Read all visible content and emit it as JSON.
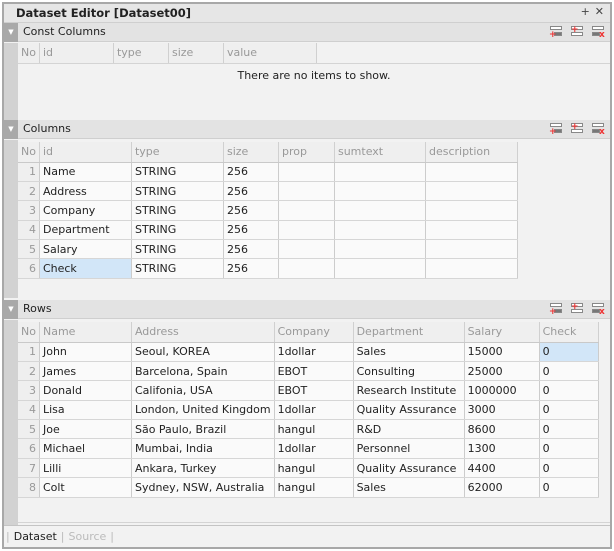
{
  "window": {
    "title": "Dataset Editor [Dataset00]",
    "pin": "+",
    "close": "✕"
  },
  "const_columns": {
    "title": "Const Columns",
    "headers": [
      "No",
      "id",
      "type",
      "size",
      "value"
    ],
    "empty_message": "There are no items to show."
  },
  "columns": {
    "title": "Columns",
    "headers": [
      "No",
      "id",
      "type",
      "size",
      "prop",
      "sumtext",
      "description"
    ],
    "rows": [
      [
        "1",
        "Name",
        "STRING",
        "256",
        "",
        "",
        ""
      ],
      [
        "2",
        "Address",
        "STRING",
        "256",
        "",
        "",
        ""
      ],
      [
        "3",
        "Company",
        "STRING",
        "256",
        "",
        "",
        ""
      ],
      [
        "4",
        "Department",
        "STRING",
        "256",
        "",
        "",
        ""
      ],
      [
        "5",
        "Salary",
        "STRING",
        "256",
        "",
        "",
        ""
      ],
      [
        "6",
        "Check",
        "STRING",
        "256",
        "",
        "",
        ""
      ]
    ]
  },
  "rows": {
    "title": "Rows",
    "headers": [
      "No",
      "Name",
      "Address",
      "Company",
      "Department",
      "Salary",
      "Check"
    ],
    "rows": [
      [
        "1",
        "John",
        "Seoul, KOREA",
        "1dollar",
        "Sales",
        "15000",
        "0"
      ],
      [
        "2",
        "James",
        "Barcelona, Spain",
        "EBOT",
        "Consulting",
        "25000",
        "0"
      ],
      [
        "3",
        "Donald",
        "Califonia, USA",
        "EBOT",
        "Research Institute",
        "1000000",
        "0"
      ],
      [
        "4",
        "Lisa",
        "London, United Kingdom",
        "1dollar",
        "Quality Assurance",
        "3000",
        "0"
      ],
      [
        "5",
        "Joe",
        "São Paulo, Brazil",
        "hangul",
        "R&D",
        "8600",
        "0"
      ],
      [
        "6",
        "Michael",
        "Mumbai, India",
        "1dollar",
        "Personnel",
        "1300",
        "0"
      ],
      [
        "7",
        "Lilli",
        "Ankara, Turkey",
        "hangul",
        "Quality Assurance",
        "4400",
        "0"
      ],
      [
        "8",
        "Colt",
        "Sydney, NSW, Australia",
        "hangul",
        "Sales",
        "62000",
        "0"
      ]
    ]
  },
  "footer": {
    "tabs": [
      "Dataset",
      "Source"
    ],
    "active": "Dataset"
  },
  "icons": {
    "add_row": "add-row-icon",
    "insert_row": "insert-row-icon",
    "delete_row": "delete-row-icon",
    "collapse": "collapse-triangle-icon"
  }
}
